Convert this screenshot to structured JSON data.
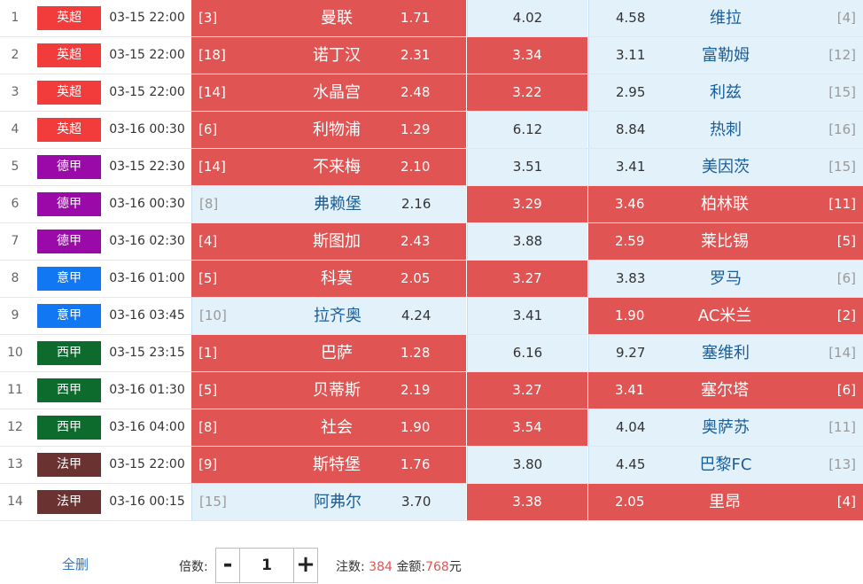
{
  "matches": [
    {
      "index": "1",
      "league": "英超",
      "league_color": "#f23b3b",
      "time": "03-15 22:00",
      "home_rank": "[3]",
      "home": "曼联",
      "home_odds": "1.71",
      "draw_odds": "4.02",
      "away_odds": "4.58",
      "away": "维拉",
      "away_rank": "[4]",
      "home_selected": true,
      "draw_selected": false,
      "away_selected": false
    },
    {
      "index": "2",
      "league": "英超",
      "league_color": "#f23b3b",
      "time": "03-15 22:00",
      "home_rank": "[18]",
      "home": "诺丁汉",
      "home_odds": "2.31",
      "draw_odds": "3.34",
      "away_odds": "3.11",
      "away": "富勒姆",
      "away_rank": "[12]",
      "home_selected": true,
      "draw_selected": true,
      "away_selected": false
    },
    {
      "index": "3",
      "league": "英超",
      "league_color": "#f23b3b",
      "time": "03-15 22:00",
      "home_rank": "[14]",
      "home": "水晶宫",
      "home_odds": "2.48",
      "draw_odds": "3.22",
      "away_odds": "2.95",
      "away": "利兹",
      "away_rank": "[15]",
      "home_selected": true,
      "draw_selected": true,
      "away_selected": false
    },
    {
      "index": "4",
      "league": "英超",
      "league_color": "#f23b3b",
      "time": "03-16 00:30",
      "home_rank": "[6]",
      "home": "利物浦",
      "home_odds": "1.29",
      "draw_odds": "6.12",
      "away_odds": "8.84",
      "away": "热刺",
      "away_rank": "[16]",
      "home_selected": true,
      "draw_selected": false,
      "away_selected": false
    },
    {
      "index": "5",
      "league": "德甲",
      "league_color": "#9a0aa8",
      "time": "03-15 22:30",
      "home_rank": "[14]",
      "home": "不来梅",
      "home_odds": "2.10",
      "draw_odds": "3.51",
      "away_odds": "3.41",
      "away": "美因茨",
      "away_rank": "[15]",
      "home_selected": true,
      "draw_selected": false,
      "away_selected": false
    },
    {
      "index": "6",
      "league": "德甲",
      "league_color": "#9a0aa8",
      "time": "03-16 00:30",
      "home_rank": "[8]",
      "home": "弗赖堡",
      "home_odds": "2.16",
      "draw_odds": "3.29",
      "away_odds": "3.46",
      "away": "柏林联",
      "away_rank": "[11]",
      "home_selected": false,
      "draw_selected": true,
      "away_selected": true
    },
    {
      "index": "7",
      "league": "德甲",
      "league_color": "#9a0aa8",
      "time": "03-16 02:30",
      "home_rank": "[4]",
      "home": "斯图加",
      "home_odds": "2.43",
      "draw_odds": "3.88",
      "away_odds": "2.59",
      "away": "莱比锡",
      "away_rank": "[5]",
      "home_selected": true,
      "draw_selected": false,
      "away_selected": true
    },
    {
      "index": "8",
      "league": "意甲",
      "league_color": "#1277f2",
      "time": "03-16 01:00",
      "home_rank": "[5]",
      "home": "科莫",
      "home_odds": "2.05",
      "draw_odds": "3.27",
      "away_odds": "3.83",
      "away": "罗马",
      "away_rank": "[6]",
      "home_selected": true,
      "draw_selected": true,
      "away_selected": false
    },
    {
      "index": "9",
      "league": "意甲",
      "league_color": "#1277f2",
      "time": "03-16 03:45",
      "home_rank": "[10]",
      "home": "拉齐奥",
      "home_odds": "4.24",
      "draw_odds": "3.41",
      "away_odds": "1.90",
      "away": "AC米兰",
      "away_rank": "[2]",
      "home_selected": false,
      "draw_selected": false,
      "away_selected": true
    },
    {
      "index": "10",
      "league": "西甲",
      "league_color": "#0d6b2e",
      "time": "03-15 23:15",
      "home_rank": "[1]",
      "home": "巴萨",
      "home_odds": "1.28",
      "draw_odds": "6.16",
      "away_odds": "9.27",
      "away": "塞维利",
      "away_rank": "[14]",
      "home_selected": true,
      "draw_selected": false,
      "away_selected": false
    },
    {
      "index": "11",
      "league": "西甲",
      "league_color": "#0d6b2e",
      "time": "03-16 01:30",
      "home_rank": "[5]",
      "home": "贝蒂斯",
      "home_odds": "2.19",
      "draw_odds": "3.27",
      "away_odds": "3.41",
      "away": "塞尔塔",
      "away_rank": "[6]",
      "home_selected": true,
      "draw_selected": true,
      "away_selected": true
    },
    {
      "index": "12",
      "league": "西甲",
      "league_color": "#0d6b2e",
      "time": "03-16 04:00",
      "home_rank": "[8]",
      "home": "社会",
      "home_odds": "1.90",
      "draw_odds": "3.54",
      "away_odds": "4.04",
      "away": "奥萨苏",
      "away_rank": "[11]",
      "home_selected": true,
      "draw_selected": true,
      "away_selected": false
    },
    {
      "index": "13",
      "league": "法甲",
      "league_color": "#6b3232",
      "time": "03-15 22:00",
      "home_rank": "[9]",
      "home": "斯特堡",
      "home_odds": "1.76",
      "draw_odds": "3.80",
      "away_odds": "4.45",
      "away": "巴黎FC",
      "away_rank": "[13]",
      "home_selected": true,
      "draw_selected": false,
      "away_selected": false
    },
    {
      "index": "14",
      "league": "法甲",
      "league_color": "#6b3232",
      "time": "03-16 00:15",
      "home_rank": "[15]",
      "home": "阿弗尔",
      "home_odds": "3.70",
      "draw_odds": "3.38",
      "away_odds": "2.05",
      "away": "里昂",
      "away_rank": "[4]",
      "home_selected": false,
      "draw_selected": true,
      "away_selected": true
    }
  ],
  "footer": {
    "clear_all": "全删",
    "multiplier_label": "倍数:",
    "minus": "-",
    "plus": "+",
    "multiplier_value": "1",
    "bets_label": "注数:",
    "bets_value": "384",
    "amount_label": "金额:",
    "amount_value": "768",
    "amount_unit": "元"
  },
  "colors": {
    "selected": "#e05453",
    "unselected": "#e3f1fb",
    "link": "#2f77c6"
  }
}
